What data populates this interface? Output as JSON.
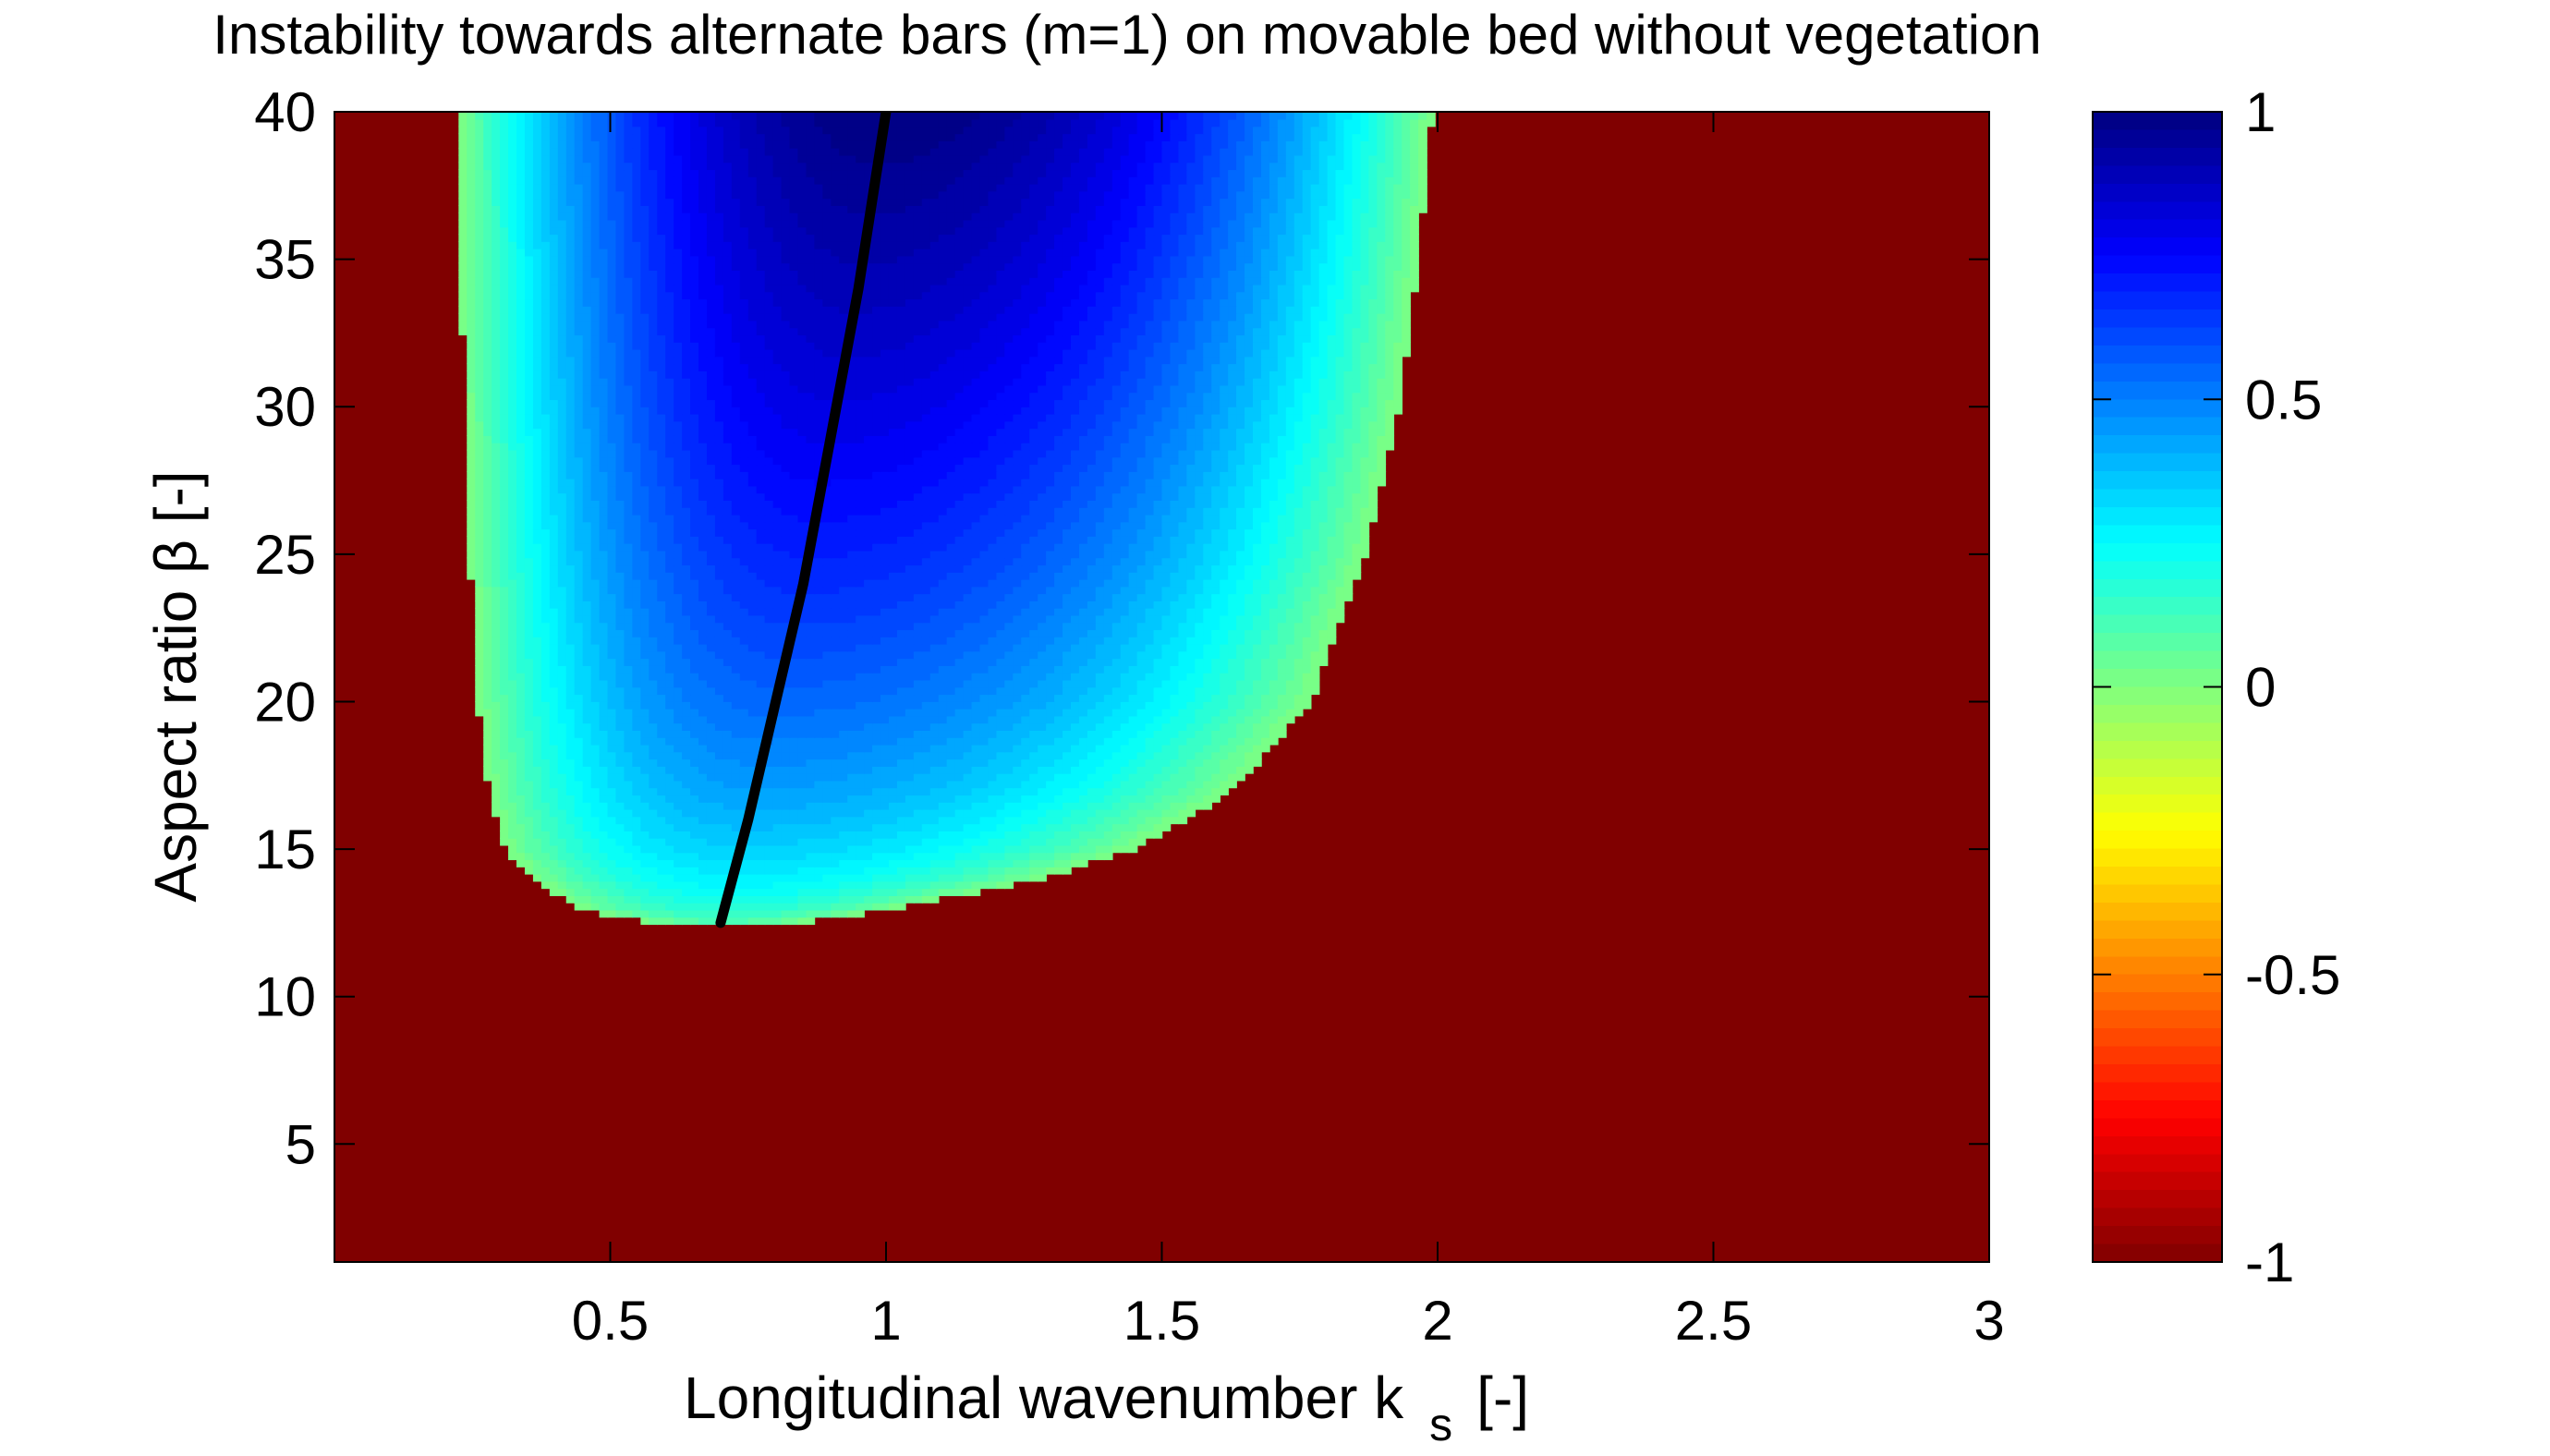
{
  "chart_data": {
    "type": "heatmap",
    "title": "Instability towards alternate bars (m=1) on movable bed without vegetation",
    "xlabel": "Longitudinal wavenumber k",
    "xlabel_subscript": "s",
    "xlabel_units": "[-]",
    "ylabel": "Aspect ratio  β [-]",
    "xlim": [
      0.0,
      3.0
    ],
    "ylim": [
      1,
      40
    ],
    "x_ticks": [
      0.5,
      1,
      1.5,
      2,
      2.5,
      3
    ],
    "x_tick_labels": [
      "0.5",
      "1",
      "1.5",
      "2",
      "2.5",
      "3"
    ],
    "y_ticks": [
      5,
      10,
      15,
      20,
      25,
      30,
      35,
      40
    ],
    "y_tick_labels": [
      "5",
      "10",
      "15",
      "20",
      "25",
      "30",
      "35",
      "40"
    ],
    "colorbar": {
      "range": [
        -1,
        1
      ],
      "ticks": [
        1,
        0.5,
        0,
        -0.5,
        -1
      ],
      "tick_labels": [
        "1",
        "0.5",
        "0",
        "-0.5",
        "-1"
      ],
      "colormap": "jet"
    },
    "stable_color": "#800000",
    "unstable_region": {
      "beta_min": 12.5,
      "boundary_left": [
        [
          12.5,
          0.57
        ],
        [
          13,
          0.44
        ],
        [
          14,
          0.36
        ],
        [
          15,
          0.31
        ],
        [
          17,
          0.28
        ],
        [
          20,
          0.26
        ],
        [
          25,
          0.245
        ],
        [
          30,
          0.235
        ],
        [
          35,
          0.23
        ],
        [
          40,
          0.225
        ]
      ],
      "boundary_right": [
        [
          12.5,
          0.84
        ],
        [
          13,
          1.02
        ],
        [
          14,
          1.28
        ],
        [
          15,
          1.45
        ],
        [
          17,
          1.63
        ],
        [
          20,
          1.77
        ],
        [
          25,
          1.87
        ],
        [
          30,
          1.93
        ],
        [
          35,
          1.965
        ],
        [
          40,
          1.99
        ]
      ]
    },
    "max_growth_line": {
      "color": "#000000",
      "points": [
        [
          0.7,
          12.5
        ],
        [
          0.75,
          16
        ],
        [
          0.8,
          20
        ],
        [
          0.85,
          24
        ],
        [
          0.9,
          29
        ],
        [
          0.95,
          34
        ],
        [
          1.0,
          40
        ]
      ]
    },
    "peak_value": 1.0,
    "peak_location": [
      1.0,
      40
    ]
  }
}
